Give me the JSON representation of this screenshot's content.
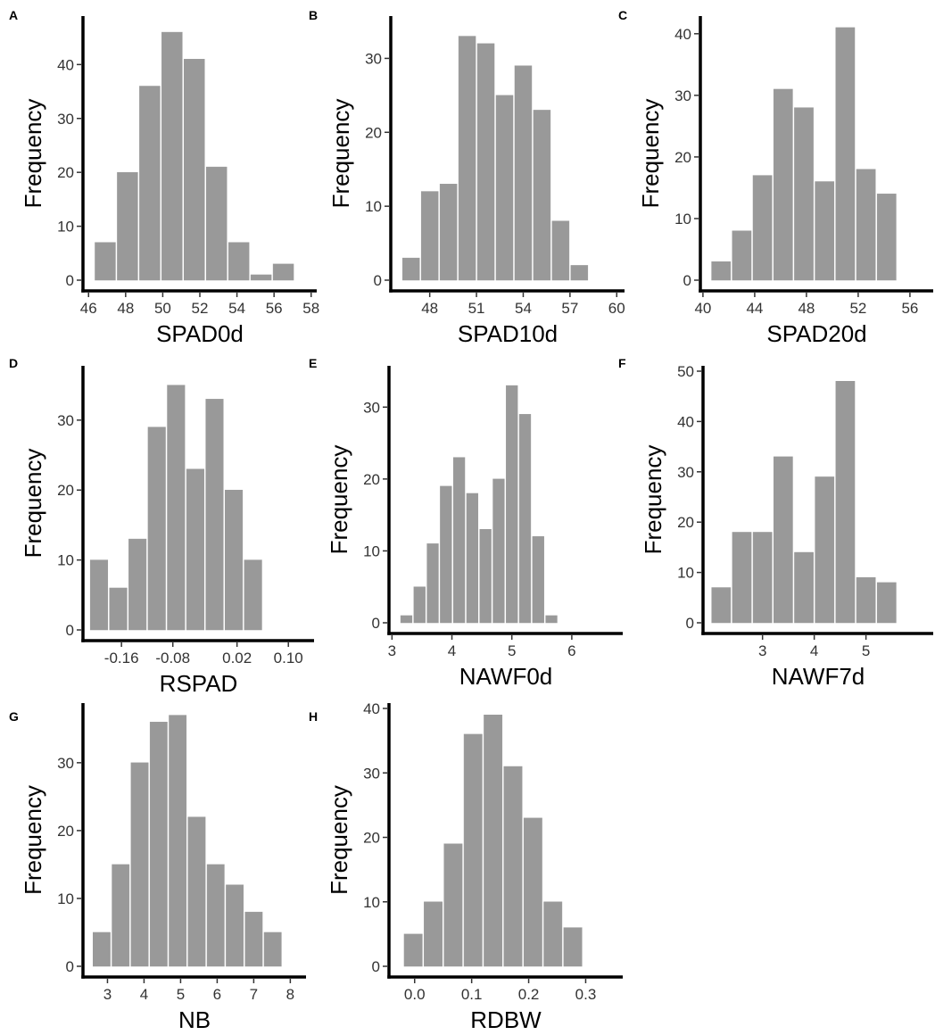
{
  "chart_data": [
    {
      "type": "bar",
      "panel": "A",
      "xlabel": "SPAD0d",
      "ylabel": "Frequency",
      "xlim": [
        45.7,
        58.3
      ],
      "ylim": [
        0,
        48
      ],
      "xticks": [
        46,
        48,
        50,
        52,
        54,
        56,
        58
      ],
      "yticks": [
        0,
        10,
        20,
        30,
        40
      ],
      "bin_width": 1.2,
      "bins": [
        46.9,
        48.1,
        49.3,
        50.5,
        51.7,
        52.9,
        54.1,
        55.3,
        56.5,
        57.7
      ],
      "values": [
        7,
        20,
        36,
        46,
        41,
        21,
        7,
        1,
        3,
        0
      ]
    },
    {
      "type": "bar",
      "panel": "B",
      "xlabel": "SPAD10d",
      "ylabel": "Frequency",
      "xlim": [
        45.5,
        60.5
      ],
      "ylim": [
        0,
        35
      ],
      "xticks": [
        48,
        51,
        54,
        57,
        60
      ],
      "yticks": [
        0,
        10,
        20,
        30
      ],
      "bin_width": 1.2,
      "bins": [
        46.8,
        48.0,
        49.2,
        50.4,
        51.6,
        52.8,
        54.0,
        55.2,
        56.4,
        57.6,
        58.8
      ],
      "values": [
        3,
        12,
        13,
        33,
        32,
        25,
        29,
        23,
        8,
        2,
        0
      ]
    },
    {
      "type": "bar",
      "panel": "C",
      "xlabel": "SPAD20d",
      "ylabel": "Frequency",
      "xlim": [
        39.8,
        57.8
      ],
      "ylim": [
        0,
        42
      ],
      "xticks": [
        40,
        44,
        48,
        52,
        56
      ],
      "yticks": [
        0,
        10,
        20,
        30,
        40
      ],
      "bin_width": 1.6,
      "bins": [
        41.4,
        43.0,
        44.6,
        46.2,
        47.8,
        49.4,
        51.0,
        52.6,
        54.2,
        55.8
      ],
      "values": [
        3,
        8,
        17,
        31,
        28,
        16,
        41,
        18,
        14,
        0
      ]
    },
    {
      "type": "bar",
      "panel": "D",
      "xlabel": "RSPAD",
      "ylabel": "Frequency",
      "xlim": [
        -0.22,
        0.14
      ],
      "ylim": [
        0,
        37
      ],
      "xticks": [
        -0.16,
        -0.08,
        0.02,
        0.1
      ],
      "xticklabels": [
        "-0.16",
        "-0.08",
        "0.02",
        "0.10"
      ],
      "yticks": [
        0,
        10,
        20,
        30
      ],
      "bin_width": 0.03,
      "bins": [
        -0.195,
        -0.165,
        -0.135,
        -0.105,
        -0.075,
        -0.045,
        -0.015,
        0.015,
        0.045,
        0.075,
        0.105
      ],
      "values": [
        10,
        6,
        13,
        29,
        35,
        23,
        33,
        20,
        10,
        0,
        0
      ]
    },
    {
      "type": "bar",
      "panel": "E",
      "xlabel": "NAWF0d",
      "ylabel": "Frequency",
      "xlim": [
        2.95,
        6.85
      ],
      "ylim": [
        0,
        35
      ],
      "xticks": [
        3,
        4,
        5,
        6
      ],
      "yticks": [
        0,
        10,
        20,
        30
      ],
      "bin_width": 0.22,
      "bins": [
        3.24,
        3.46,
        3.68,
        3.9,
        4.12,
        4.34,
        4.56,
        4.78,
        5.0,
        5.22,
        5.44,
        5.66,
        5.88,
        6.1,
        6.32,
        6.54
      ],
      "values": [
        1,
        5,
        11,
        19,
        23,
        18,
        13,
        20,
        33,
        29,
        12,
        1,
        0,
        0,
        0,
        0
      ]
    },
    {
      "type": "bar",
      "panel": "F",
      "xlabel": "NAWF7d",
      "ylabel": "Frequency",
      "xlim": [
        1.85,
        6.3
      ],
      "ylim": [
        0,
        50
      ],
      "xticks": [
        3,
        4,
        5
      ],
      "yticks": [
        0,
        10,
        20,
        30,
        40,
        50
      ],
      "bin_width": 0.4,
      "bins": [
        2.2,
        2.6,
        3.0,
        3.4,
        3.8,
        4.2,
        4.6,
        5.0,
        5.4,
        5.8
      ],
      "values": [
        7,
        18,
        18,
        33,
        14,
        29,
        48,
        9,
        8,
        0
      ]
    },
    {
      "type": "bar",
      "panel": "G",
      "xlabel": "NB",
      "ylabel": "Frequency",
      "xlim": [
        2.33,
        8.43
      ],
      "ylim": [
        0,
        38
      ],
      "xticks": [
        3,
        4,
        5,
        6,
        7,
        8
      ],
      "yticks": [
        0,
        10,
        20,
        30
      ],
      "bin_width": 0.52,
      "bins": [
        2.84,
        3.36,
        3.88,
        4.4,
        4.92,
        5.44,
        5.96,
        6.48,
        7.0,
        7.52,
        8.04
      ],
      "values": [
        5,
        15,
        30,
        36,
        37,
        22,
        15,
        12,
        8,
        5,
        0
      ]
    },
    {
      "type": "bar",
      "panel": "H",
      "xlabel": "RDBW",
      "ylabel": "Frequency",
      "xlim": [
        -0.045,
        0.365
      ],
      "ylim": [
        0,
        40
      ],
      "xticks": [
        0.0,
        0.1,
        0.2,
        0.3
      ],
      "xticklabels": [
        "0.0",
        "0.1",
        "0.2",
        "0.3"
      ],
      "yticks": [
        0,
        10,
        20,
        30,
        40
      ],
      "bin_width": 0.035,
      "bins": [
        -0.0025,
        0.0325,
        0.0675,
        0.1025,
        0.1375,
        0.1725,
        0.2075,
        0.2425,
        0.2775,
        0.3125
      ],
      "values": [
        5,
        10,
        19,
        36,
        39,
        31,
        23,
        10,
        6,
        0
      ]
    }
  ]
}
